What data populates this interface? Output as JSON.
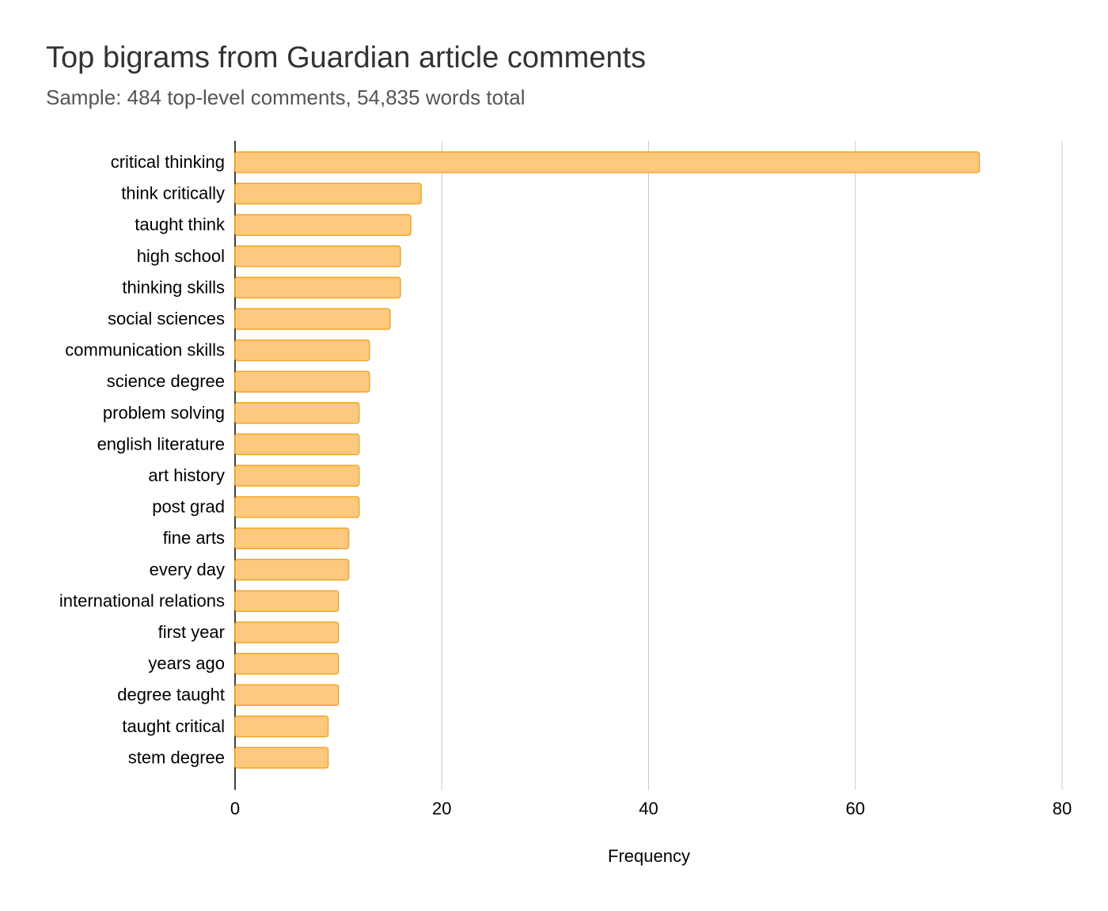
{
  "chart_data": {
    "type": "bar",
    "orientation": "horizontal",
    "title": "Top bigrams from Guardian article comments",
    "subtitle": "Sample: 484 top-level comments, 54,835 words total",
    "xlabel": "Frequency",
    "ylabel": "",
    "xlim": [
      0,
      80
    ],
    "xticks": [
      0,
      20,
      40,
      60,
      80
    ],
    "grid": true,
    "bar_fill": "#fdc97e",
    "bar_stroke": "#f5a623",
    "categories": [
      "critical thinking",
      "think critically",
      "taught think",
      "high school",
      "thinking skills",
      "social sciences",
      "communication skills",
      "science degree",
      "problem solving",
      "english literature",
      "art history",
      "post grad",
      "fine arts",
      "every day",
      "international relations",
      "first year",
      "years ago",
      "degree taught",
      "taught critical",
      "stem degree"
    ],
    "values": [
      72,
      18,
      17,
      16,
      16,
      15,
      13,
      13,
      12,
      12,
      12,
      12,
      11,
      11,
      10,
      10,
      10,
      10,
      9,
      9
    ]
  }
}
